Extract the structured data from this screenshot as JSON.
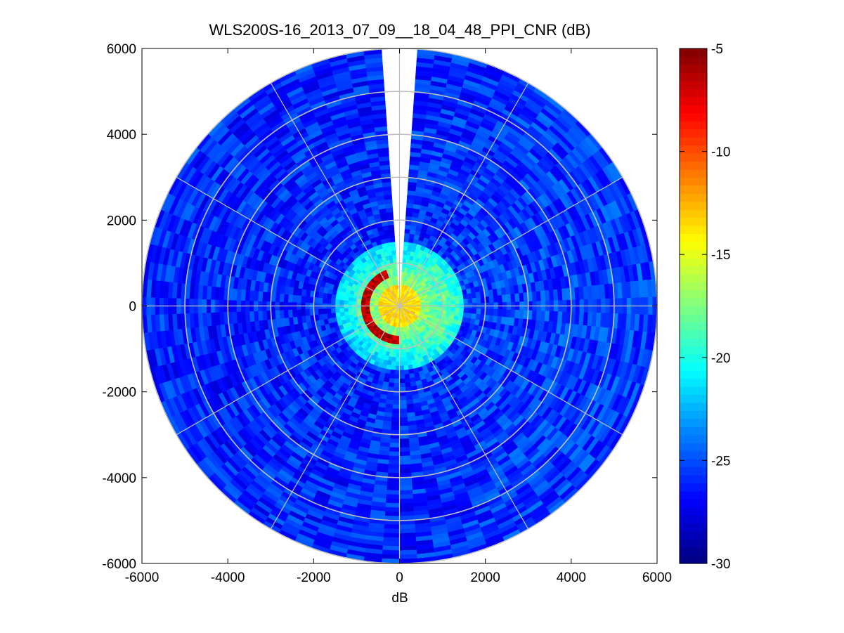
{
  "chart_data": {
    "type": "heatmap",
    "subtype": "polar-ppi",
    "title": "WLS200S-16_2013_07_09__18_04_48_PPI_CNR (dB)",
    "xlabel": "dB",
    "ylabel": "",
    "xlim": [
      -6000,
      6000
    ],
    "ylim": [
      -6000,
      6000
    ],
    "x_ticks": [
      -6000,
      -4000,
      -2000,
      0,
      2000,
      4000,
      6000
    ],
    "y_ticks": [
      -6000,
      -4000,
      -2000,
      0,
      2000,
      4000,
      6000
    ],
    "x_tick_labels": [
      "-6000",
      "-4000",
      "-2000",
      "0",
      "2000",
      "4000",
      "6000"
    ],
    "y_tick_labels": [
      "-6000",
      "-4000",
      "-2000",
      "0",
      "2000",
      "4000",
      "6000"
    ],
    "range_rings": [
      1000,
      2000,
      3000,
      4000,
      5000,
      6000
    ],
    "spoke_angles_deg": [
      0,
      30,
      60,
      90,
      120,
      150,
      180,
      210,
      240,
      270,
      300,
      330
    ],
    "max_range": 6000,
    "missing_sector_deg": [
      -4,
      4
    ],
    "colorbar": {
      "min": -30,
      "max": -5,
      "ticks": [
        -5,
        -10,
        -15,
        -20,
        -25,
        -30
      ],
      "tick_labels": [
        "-5",
        "-10",
        "-15",
        "-20",
        "-25",
        "-30"
      ],
      "colormap": "jet"
    },
    "field_description_values": {
      "near_field_cnr_db": -15,
      "near_ring_cnr_db": -5,
      "far_field_cnr_db": -26
    },
    "grid": true
  },
  "colors": {
    "grid_line": "#bfbfbf",
    "axis": "#000000",
    "background": "#ffffff"
  }
}
